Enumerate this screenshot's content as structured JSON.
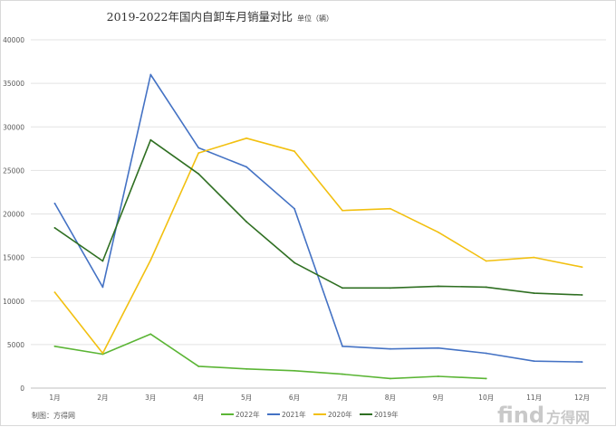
{
  "chart_data": {
    "type": "line",
    "title": "2019-2022年国内自卸车月销量对比",
    "subtitle": "单位（辆）",
    "xlabel": "",
    "ylabel": "",
    "categories": [
      "1月",
      "2月",
      "3月",
      "4月",
      "5月",
      "6月",
      "7月",
      "8月",
      "9月",
      "10月",
      "11月",
      "12月"
    ],
    "ylim": [
      0,
      40000
    ],
    "yticks": [
      0,
      5000,
      10000,
      15000,
      20000,
      25000,
      30000,
      35000,
      40000
    ],
    "grid": true,
    "legend_position": "bottom",
    "series": [
      {
        "name": "2022年",
        "color": "#5bb535",
        "values": [
          4800,
          3900,
          6200,
          2500,
          2200,
          2000,
          1600,
          1100,
          1350,
          1100,
          null,
          null
        ]
      },
      {
        "name": "2021年",
        "color": "#4472c4",
        "values": [
          21200,
          11600,
          36000,
          27600,
          25400,
          20600,
          4800,
          4500,
          4600,
          4000,
          3100,
          3000
        ]
      },
      {
        "name": "2020年",
        "color": "#f2c010",
        "values": [
          11000,
          4000,
          14700,
          27000,
          28700,
          27200,
          20400,
          20600,
          17900,
          14600,
          15000,
          13900
        ]
      },
      {
        "name": "2019年",
        "color": "#2f6f22",
        "values": [
          18400,
          14600,
          28500,
          24600,
          19100,
          14400,
          11500,
          11500,
          11700,
          11600,
          10900,
          10700
        ]
      }
    ]
  },
  "footer": {
    "credit": "制图：方得网"
  },
  "watermark": {
    "brand": "find",
    "cn": "方得网"
  }
}
